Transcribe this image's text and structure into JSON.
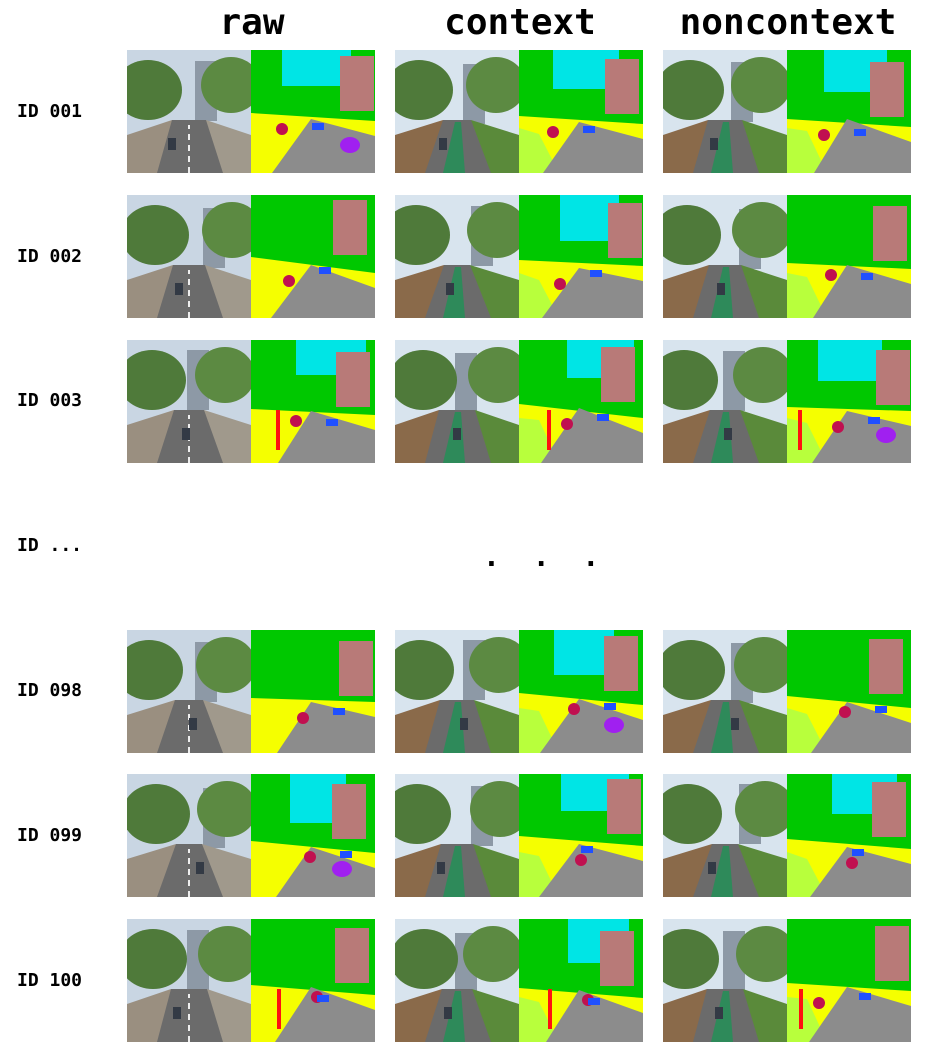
{
  "columns": [
    "raw",
    "context",
    "noncontext"
  ],
  "rows": [
    {
      "label": "ID 001"
    },
    {
      "label": "ID 002"
    },
    {
      "label": "ID 003"
    },
    {
      "label": "ID ..."
    },
    {
      "label": "ID 098"
    },
    {
      "label": "ID 099"
    },
    {
      "label": "ID 100"
    }
  ],
  "ellipsis": ". . .",
  "colors": {
    "vegetation": "#00c800",
    "sky": "#00e5e5",
    "building": "#b87a78",
    "road": "#8c8c8c",
    "sidewalk": "#f5ff00",
    "terrain": "#b8ff3c",
    "car": "#2050ff",
    "person": "#c01050",
    "pole": "#ff1010",
    "misc": "#a020f0"
  }
}
